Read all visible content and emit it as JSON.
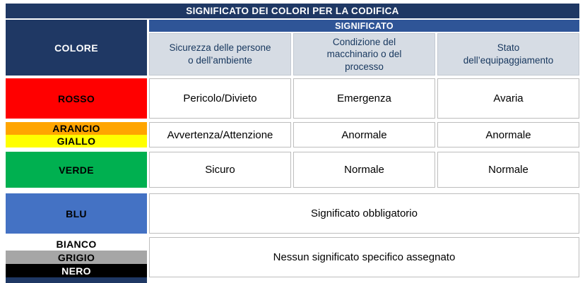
{
  "title": "SIGNIFICATO DEI COLORI PER LA CODIFICA",
  "header": {
    "colore": "COLORE",
    "significato": "SIGNIFICATO",
    "columns": [
      "Sicurezza delle persone o dell’ambiente",
      "Condizione del macchinario o del processo",
      "Stato dell’equipaggiamento"
    ]
  },
  "colors": {
    "navy": "#1F3864",
    "significato_band": "#2F5597",
    "subheader_bg": "#D6DCE4",
    "cell_border": "#BDBDBD"
  },
  "rows": [
    {
      "labels": [
        {
          "name": "ROSSO",
          "bg": "#FF0000",
          "fg": "#000000"
        }
      ],
      "cells": [
        "Pericolo/Divieto",
        "Emergenza",
        "Avaria"
      ]
    },
    {
      "labels": [
        {
          "name": "ARANCIO",
          "bg": "#FFA500",
          "fg": "#000000"
        },
        {
          "name": "GIALLO",
          "bg": "#FFFF00",
          "fg": "#000000"
        }
      ],
      "cells": [
        "Avvertenza/Attenzione",
        "Anormale",
        "Anormale"
      ]
    },
    {
      "labels": [
        {
          "name": "VERDE",
          "bg": "#00B050",
          "fg": "#000000"
        }
      ],
      "cells": [
        "Sicuro",
        "Normale",
        "Normale"
      ]
    },
    {
      "labels": [
        {
          "name": "BLU",
          "bg": "#4472C4",
          "fg": "#000000"
        }
      ],
      "span_cell": "Significato obbligatorio"
    },
    {
      "labels": [
        {
          "name": "BIANCO",
          "bg": "#FFFFFF",
          "fg": "#000000"
        },
        {
          "name": "GRIGIO",
          "bg": "#A6A6A6",
          "fg": "#000000"
        },
        {
          "name": "NERO",
          "bg": "#000000",
          "fg": "#FFFFFF"
        }
      ],
      "span_cell": "Nessun significato specifico assegnato"
    }
  ]
}
